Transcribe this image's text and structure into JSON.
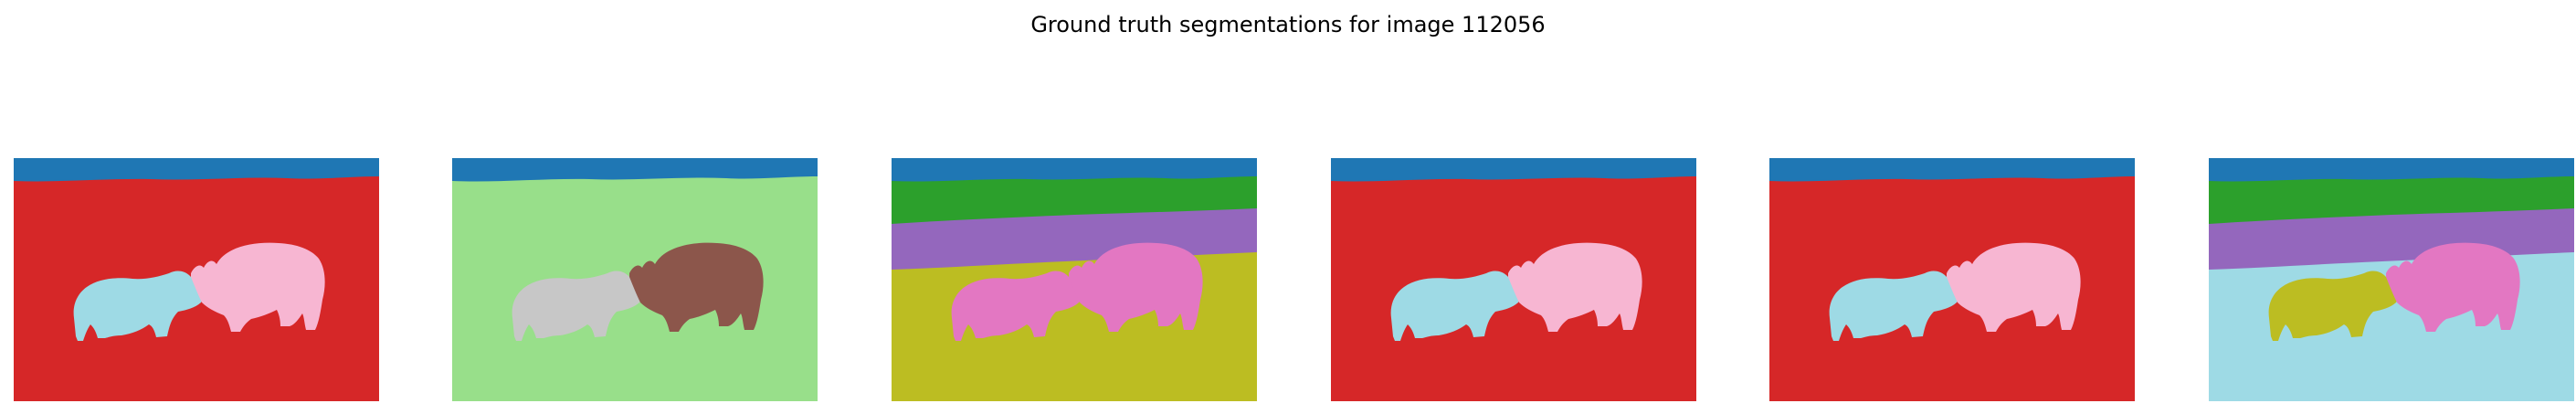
{
  "figure": {
    "title": "Ground truth segmentations for image 112056"
  },
  "colors": {
    "blue": "#1f77b4",
    "red": "#d62728",
    "cyan": "#9edae5",
    "pink": "#f7b6d2",
    "light_green": "#98df8a",
    "gray": "#c7c7c7",
    "brown": "#8c564b",
    "green": "#2ca02c",
    "purple": "#9467bd",
    "olive": "#bcbd22",
    "magenta": "#e377c2"
  },
  "panels": [
    {
      "id": "segmentation-1",
      "sky": "blue",
      "upper_band": null,
      "mid_band": null,
      "ground": "red",
      "left_animal": "cyan",
      "right_animal": "pink"
    },
    {
      "id": "segmentation-2",
      "sky": "blue",
      "upper_band": null,
      "mid_band": null,
      "ground": "light_green",
      "left_animal": "gray",
      "right_animal": "brown"
    },
    {
      "id": "segmentation-3",
      "sky": "blue",
      "upper_band": "green",
      "mid_band": "purple",
      "ground": "olive",
      "left_animal": "magenta",
      "right_animal": "magenta"
    },
    {
      "id": "segmentation-4",
      "sky": "blue",
      "upper_band": null,
      "mid_band": null,
      "ground": "red",
      "left_animal": "cyan",
      "right_animal": "pink"
    },
    {
      "id": "segmentation-5",
      "sky": "blue",
      "upper_band": null,
      "mid_band": null,
      "ground": "red",
      "left_animal": "cyan",
      "right_animal": "pink"
    },
    {
      "id": "segmentation-6",
      "sky": "blue",
      "upper_band": "green",
      "mid_band": "purple",
      "ground": "cyan",
      "left_animal": "olive",
      "right_animal": "magenta"
    }
  ]
}
